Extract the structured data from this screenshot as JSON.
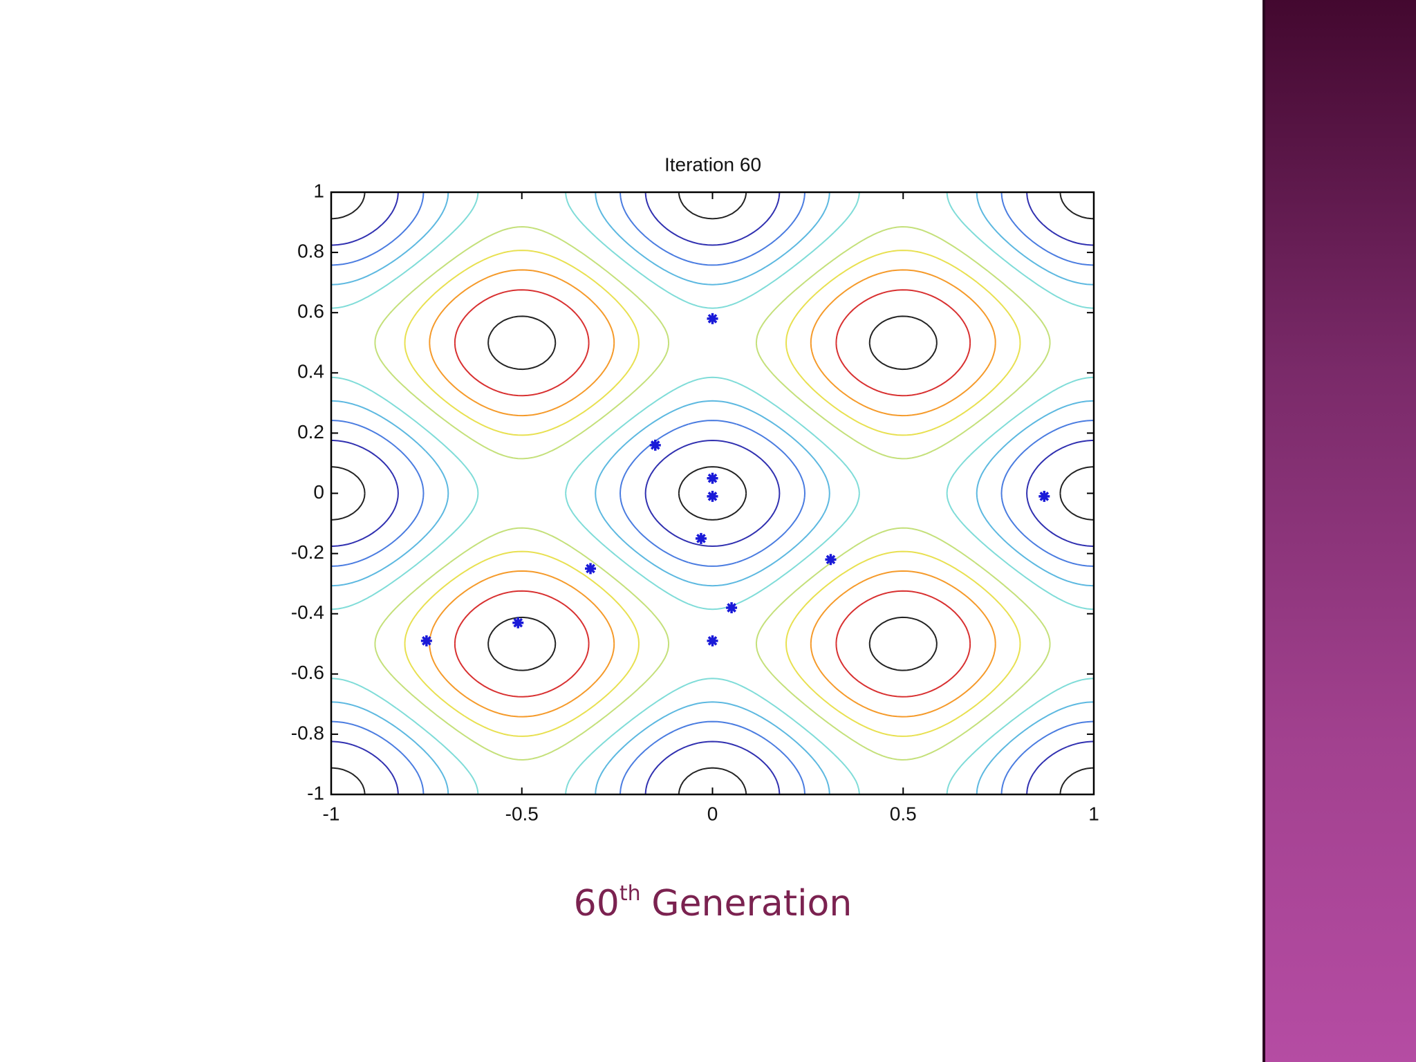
{
  "chart_data": {
    "type": "scatter",
    "title": "Iteration 60",
    "x": [
      0,
      -0.15,
      0,
      0,
      -0.03,
      0.87,
      0.31,
      -0.32,
      0.05,
      0,
      -0.51,
      -0.75
    ],
    "series": [
      {
        "color": "#1a1ad8",
        "values": [
          0.58,
          0.16,
          0.05,
          -0.01,
          -0.15,
          -0.01,
          -0.22,
          -0.25,
          -0.38,
          -0.49,
          -0.43,
          -0.49
        ]
      }
    ],
    "xlim": [
      -1,
      1
    ],
    "ylim": [
      -1,
      1
    ],
    "xticks": [
      -1,
      -0.5,
      0,
      0.5,
      1
    ],
    "yticks": [
      -1,
      -0.8,
      -0.6,
      -0.4,
      -0.2,
      0,
      0.2,
      0.4,
      0.6,
      0.8,
      1
    ]
  },
  "caption": {
    "number": "60",
    "superscript": "th",
    "text": "Generation"
  }
}
